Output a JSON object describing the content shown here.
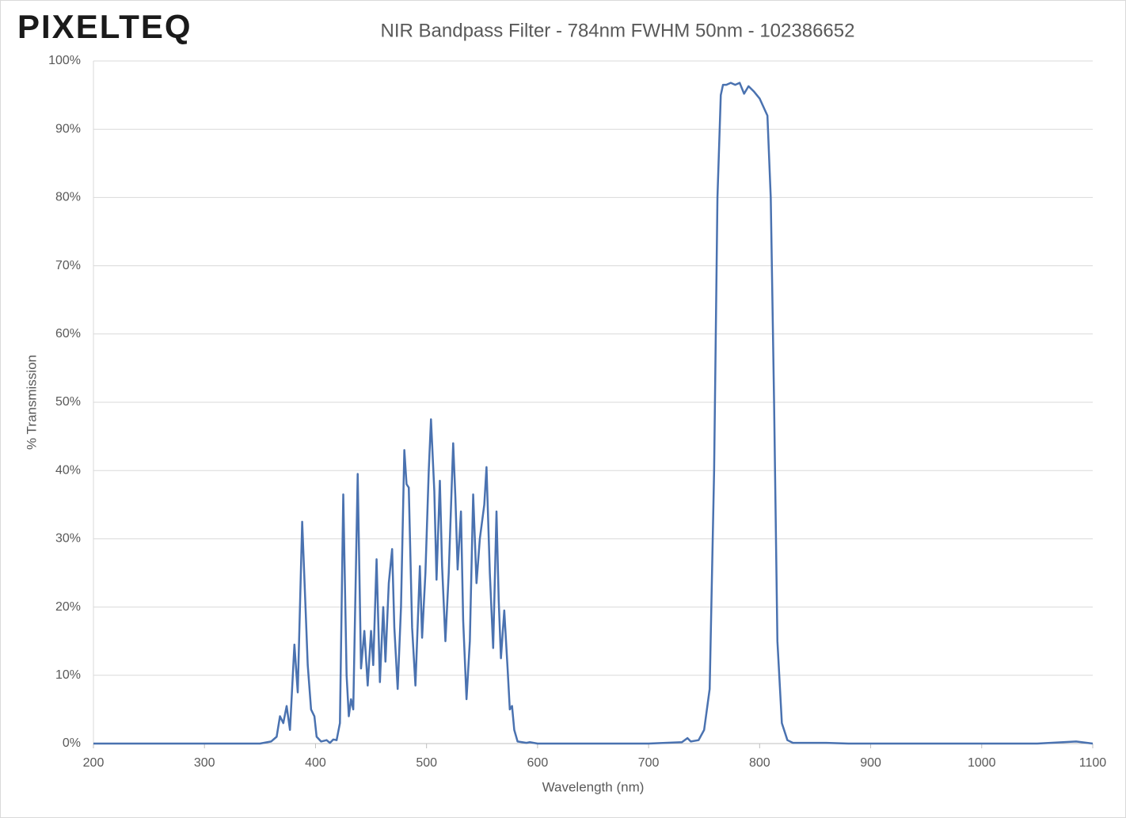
{
  "logo": "PIXELTEQ",
  "chart_data": {
    "type": "line",
    "title": "NIR Bandpass Filter - 784nm FWHM 50nm - 102386652",
    "x_label": "Wavelength (nm)",
    "y_label": "% Transmission",
    "xlim": [
      200,
      1100
    ],
    "xticks": [
      200,
      300,
      400,
      500,
      600,
      700,
      800,
      900,
      1000,
      1100
    ],
    "ylim": [
      0,
      100
    ],
    "yticks": [
      {
        "value": 0,
        "label": "0%"
      },
      {
        "value": 10,
        "label": "10%"
      },
      {
        "value": 20,
        "label": "20%"
      },
      {
        "value": 30,
        "label": "30%"
      },
      {
        "value": 40,
        "label": "40%"
      },
      {
        "value": 50,
        "label": "50%"
      },
      {
        "value": 60,
        "label": "60%"
      },
      {
        "value": 70,
        "label": "70%"
      },
      {
        "value": 80,
        "label": "80%"
      },
      {
        "value": 90,
        "label": "90%"
      },
      {
        "value": 100,
        "label": "100%"
      }
    ],
    "grid": true,
    "x": [
      200,
      350,
      360,
      365,
      368,
      371,
      374,
      377,
      381,
      384,
      388,
      391,
      393,
      396,
      399,
      401,
      405,
      410,
      413,
      416,
      419,
      422,
      425,
      428,
      430,
      432,
      434,
      438,
      441,
      444,
      447,
      450,
      452,
      455,
      458,
      461,
      463,
      466,
      469,
      471,
      474,
      477,
      480,
      482,
      484,
      487,
      490,
      494,
      496,
      499,
      502,
      504,
      507,
      509,
      512,
      514,
      517,
      520,
      524,
      526,
      528,
      531,
      533,
      536,
      539,
      542,
      545,
      548,
      552,
      554,
      557,
      560,
      563,
      565,
      567,
      570,
      573,
      575,
      577,
      579,
      582,
      590,
      593,
      600,
      700,
      730,
      735,
      738,
      745,
      750,
      755,
      759,
      762,
      765,
      767,
      770,
      774,
      778,
      782,
      786,
      790,
      795,
      800,
      807,
      810,
      813,
      816,
      820,
      825,
      830,
      860,
      880,
      1050,
      1085,
      1100
    ],
    "series": [
      {
        "name": "Transmission",
        "color": "#4a72b0",
        "values": [
          0,
          0,
          0.3,
          1,
          4,
          3,
          5.5,
          2,
          14.5,
          7.5,
          32.5,
          20,
          11.5,
          5,
          4,
          1,
          0.3,
          0.5,
          0.1,
          0.6,
          0.5,
          3,
          36.5,
          10,
          4,
          6.5,
          5,
          39.5,
          11,
          16.5,
          8.5,
          16.5,
          11.5,
          27,
          9,
          20,
          12,
          23.5,
          28.5,
          17,
          8,
          20,
          43,
          38,
          37.5,
          17,
          8.5,
          26,
          15.5,
          25,
          40,
          47.5,
          37,
          24,
          38.5,
          26,
          15,
          25,
          44,
          36,
          25.5,
          34,
          18,
          6.5,
          15,
          36.5,
          23.5,
          30,
          35,
          40.5,
          25,
          14,
          34,
          21,
          12.5,
          19.5,
          11,
          5,
          5.5,
          2,
          0.3,
          0.1,
          0.2,
          0,
          0,
          0.2,
          0.8,
          0.3,
          0.5,
          2,
          8,
          40,
          80,
          95,
          96.5,
          96.5,
          96.8,
          96.5,
          96.8,
          95.2,
          96.3,
          95.5,
          94.5,
          92,
          80,
          50,
          15,
          3,
          0.5,
          0.1,
          0.1,
          0,
          0,
          0.3,
          0
        ]
      }
    ]
  }
}
